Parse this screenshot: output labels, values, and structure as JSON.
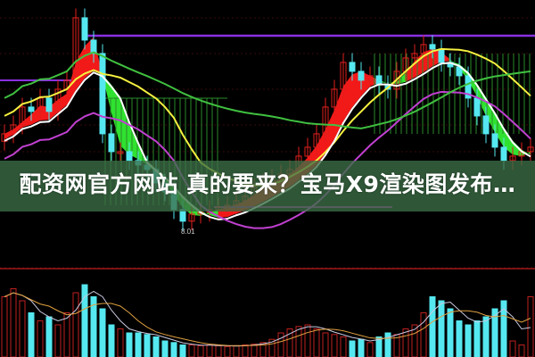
{
  "title": "配资网官方网站 真的要来？宝马X9渲染图发布…",
  "chart_data": {
    "type": "candlestick",
    "annotations": [
      {
        "label": "8.01"
      }
    ],
    "ylim": [
      7.9,
      14.1
    ],
    "grid": true,
    "closes": [
      10.46,
      10.7,
      11.18,
      11.06,
      11.42,
      11.06,
      11.66,
      11.9,
      13.58,
      12.98,
      12.62,
      10.46,
      9.98,
      9.98,
      9.74,
      9.62,
      9.5,
      9.14,
      8.9,
      8.42,
      8.11,
      8.3,
      8.35,
      8.42,
      8.49,
      8.54,
      8.66,
      8.78,
      9.02,
      9.14,
      9.26,
      9.38,
      9.5,
      9.86,
      10.1,
      10.46,
      11.18,
      11.66,
      12.38,
      12.14,
      11.9,
      12.02,
      11.78,
      11.66,
      12.14,
      12.5,
      12.62,
      12.86,
      12.74,
      12.38,
      12.26,
      12.02,
      11.42,
      10.94,
      10.46,
      10.1,
      9.74,
      9.86,
      9.98,
      10.1
    ],
    "volume": [
      75,
      85,
      70,
      55,
      45,
      50,
      40,
      55,
      80,
      90,
      75,
      60,
      40,
      35,
      30,
      30,
      28,
      25,
      20,
      18,
      15,
      15,
      14,
      15,
      14,
      13,
      14,
      15,
      16,
      18,
      22,
      30,
      35,
      38,
      40,
      35,
      30,
      28,
      25,
      20,
      22,
      18,
      25,
      30,
      28,
      35,
      40,
      55,
      75,
      70,
      60,
      45,
      40,
      45,
      50,
      60,
      70,
      20,
      15,
      75
    ],
    "colors": {
      "up": "#e0201c",
      "down": "#55e8f0",
      "ma_short": "#f5f040",
      "ma_mid": "#ffffff",
      "ma_long": "#c040d0",
      "ma_trend": "#40c040",
      "ribbon_up": "#ff1a1a",
      "ribbon_down": "#33ee33",
      "level_line": "#8a30e0"
    }
  }
}
